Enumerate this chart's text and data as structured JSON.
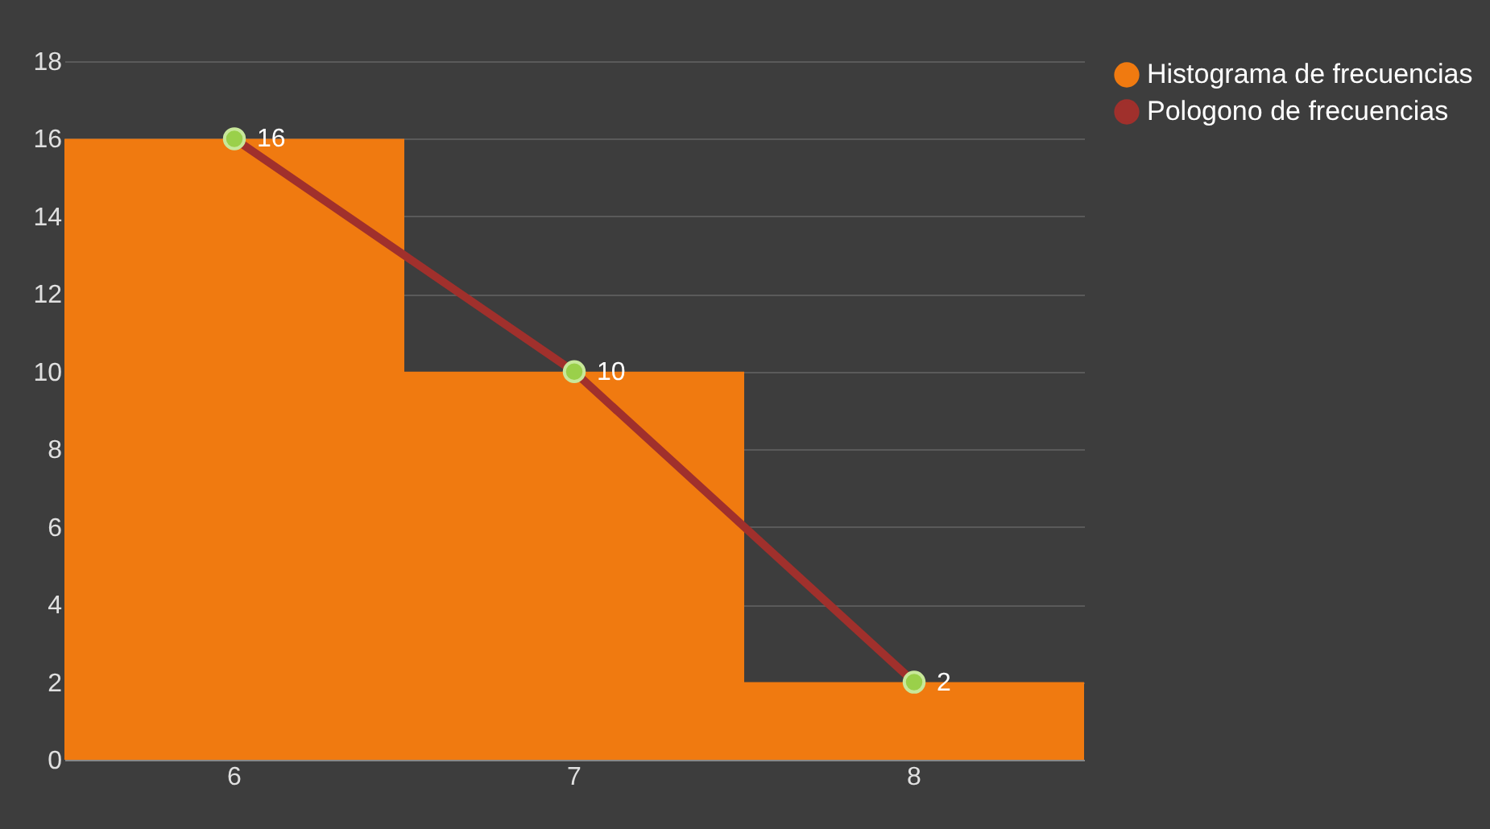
{
  "chart_data": {
    "type": "bar",
    "categories": [
      "6",
      "7",
      "8"
    ],
    "series": [
      {
        "name": "Histograma de frecuencias",
        "color": "#f07a10",
        "values": [
          16,
          10,
          2
        ]
      },
      {
        "name": "Pologono de frecuencias",
        "type": "line",
        "color": "#a0302c",
        "values": [
          16,
          10,
          2
        ],
        "marker": "circle",
        "value_labels": [
          "16",
          "10",
          "2"
        ]
      }
    ],
    "ylim": [
      0,
      18
    ],
    "yticks": [
      0,
      2,
      4,
      6,
      8,
      10,
      12,
      14,
      16,
      18
    ],
    "grid": "y",
    "legend": "right"
  }
}
